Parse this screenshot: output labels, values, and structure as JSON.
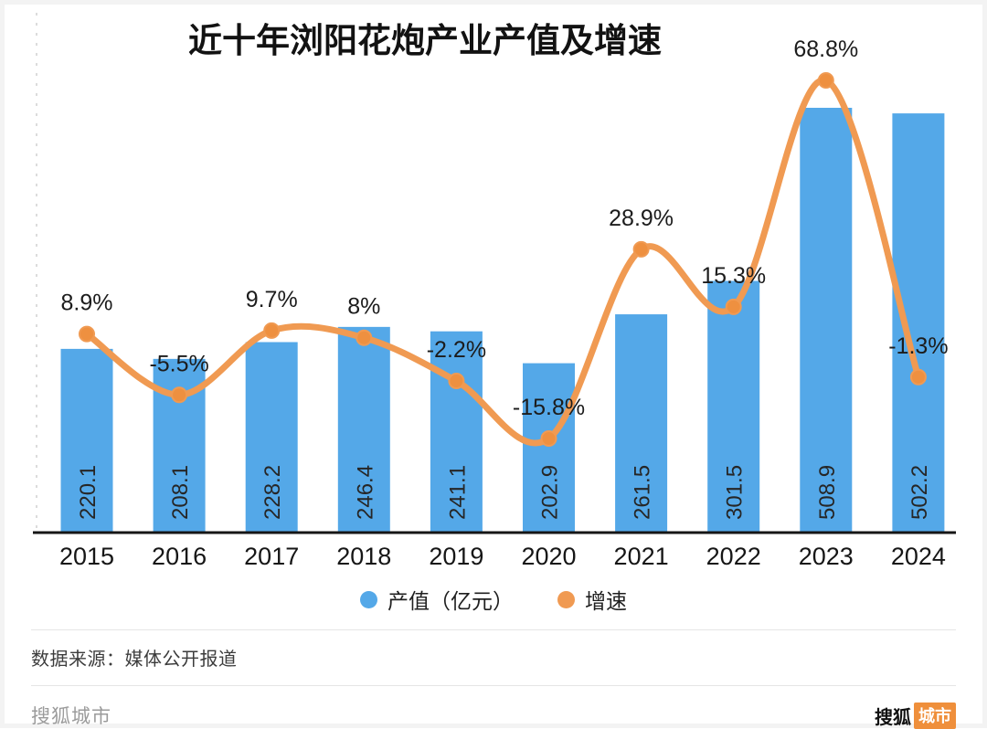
{
  "chart_data": {
    "type": "bar",
    "combo": "bar+line",
    "title": "近十年浏阳花炮产业产值及增速",
    "categories": [
      "2015",
      "2016",
      "2017",
      "2018",
      "2019",
      "2020",
      "2021",
      "2022",
      "2023",
      "2024"
    ],
    "series": [
      {
        "name": "产值（亿元）",
        "type": "bar",
        "values": [
          220.1,
          208.1,
          228.2,
          246.4,
          241.1,
          202.9,
          261.5,
          301.5,
          508.9,
          502.2
        ],
        "labels": [
          "220.1",
          "208.1",
          "228.2",
          "246.4",
          "241.1",
          "202.9",
          "261.5",
          "301.5",
          "508.9",
          "502.2"
        ]
      },
      {
        "name": "增速",
        "type": "line",
        "values": [
          8.9,
          -5.5,
          9.7,
          8,
          -2.2,
          -15.8,
          28.9,
          15.3,
          68.8,
          -1.3
        ],
        "labels": [
          "8.9%",
          "-5.5%",
          "9.7%",
          "8%",
          "-2.2%",
          "-15.8%",
          "28.9%",
          "15.3%",
          "68.8%",
          "-1.3%"
        ]
      }
    ],
    "colors": {
      "bar": "#54a8e8",
      "line": "#f09a52",
      "marker": "#ee9040"
    },
    "xlabel": "",
    "ylabel": "",
    "y_axis_ticks_visible": false,
    "grid": "left dashed guide only",
    "legend_position": "bottom"
  },
  "footer": {
    "source": "数据来源：媒体公开报道"
  },
  "branding": {
    "bottom_left": "搜狐城市",
    "logo_text": "搜狐",
    "logo_badge": "城市",
    "badge_color": "#ef8f3b"
  }
}
